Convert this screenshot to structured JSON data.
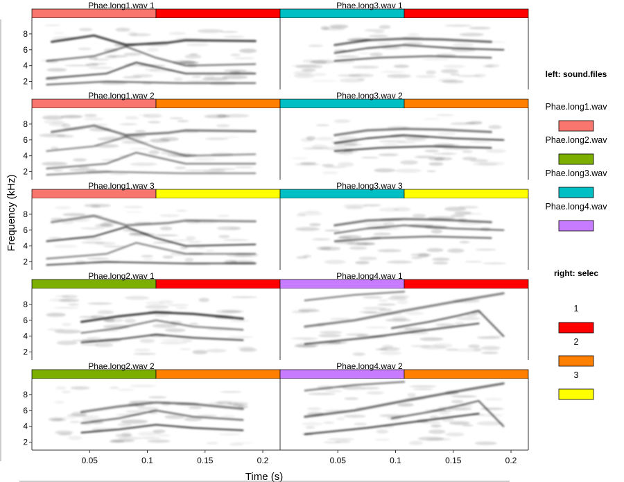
{
  "chart_data": {
    "type": "heatmap",
    "title": "",
    "xlabel": "Time (s)",
    "ylabel": "Frequency (kHz)",
    "x_ticks": [
      "0.05",
      "0.1",
      "0.15",
      "0.2"
    ],
    "x_tick_values": [
      0.05,
      0.1,
      0.15,
      0.2
    ],
    "xlim": [
      0,
      0.215
    ],
    "y_ticks": [
      "2",
      "4",
      "6",
      "8"
    ],
    "y_tick_values": [
      2,
      4,
      6,
      8
    ],
    "ylim": [
      1,
      10
    ],
    "grid": false,
    "panels": [
      {
        "title": "Phae.long1.wav 1",
        "sound_file": "Phae.long1.wav",
        "selec": "1",
        "ytick_labels": [
          "2",
          "4",
          "6",
          "8"
        ]
      },
      {
        "title": "Phae.long3.wav 1",
        "sound_file": "Phae.long3.wav",
        "selec": "1",
        "ytick_labels": [
          "2",
          "4",
          "6",
          "8"
        ]
      },
      {
        "title": "Phae.long1.wav 2",
        "sound_file": "Phae.long1.wav",
        "selec": "2",
        "ytick_labels": [
          "2",
          "4",
          "6",
          "8"
        ]
      },
      {
        "title": "Phae.long3.wav 2",
        "sound_file": "Phae.long3.wav",
        "selec": "2",
        "ytick_labels": [
          "2",
          "4",
          "6",
          "8"
        ]
      },
      {
        "title": "Phae.long1.wav 3",
        "sound_file": "Phae.long1.wav",
        "selec": "3",
        "ytick_labels": [
          "2",
          "4",
          "6",
          "8"
        ]
      },
      {
        "title": "Phae.long3.wav 3",
        "sound_file": "Phae.long3.wav",
        "selec": "3",
        "ytick_labels": [
          "2",
          "4",
          "6",
          "8"
        ]
      },
      {
        "title": "Phae.long2.wav 1",
        "sound_file": "Phae.long2.wav",
        "selec": "1",
        "ytick_labels": [
          "2",
          "4",
          "6",
          "8"
        ]
      },
      {
        "title": "Phae.long4.wav 1",
        "sound_file": "Phae.long4.wav",
        "selec": "1",
        "ytick_labels": [
          "2",
          "4",
          "6",
          "8"
        ]
      },
      {
        "title": "Phae.long2.wav 2",
        "sound_file": "Phae.long2.wav",
        "selec": "2",
        "ytick_labels": [
          "2",
          "4",
          "6",
          "8"
        ]
      },
      {
        "title": "Phae.long4.wav 2",
        "sound_file": "Phae.long4.wav",
        "selec": "2",
        "ytick_labels": [
          "2",
          "4",
          "6",
          "8"
        ]
      }
    ],
    "legend": {
      "placement": "right",
      "groups": [
        {
          "title": "left: sound.files",
          "entries": [
            {
              "label": "Phae.long1.wav",
              "color": "#F8766D"
            },
            {
              "label": "Phae.long2.wav",
              "color": "#7CAE00"
            },
            {
              "label": "Phae.long3.wav",
              "color": "#00BFC4"
            },
            {
              "label": "Phae.long4.wav",
              "color": "#C77CFF"
            }
          ]
        },
        {
          "title": "right: selec",
          "entries": [
            {
              "label": "1",
              "color": "#FF0000"
            },
            {
              "label": "2",
              "color": "#FF8000"
            },
            {
              "label": "3",
              "color": "#FFFF00"
            }
          ]
        }
      ]
    }
  },
  "colors": {
    "Phae.long1.wav": "#F8766D",
    "Phae.long2.wav": "#7CAE00",
    "Phae.long3.wav": "#00BFC4",
    "Phae.long4.wav": "#C77CFF",
    "selec_1": "#FF0000",
    "selec_2": "#FF8000",
    "selec_3": "#FFFF00",
    "spectrogram_ink": "#000000"
  }
}
